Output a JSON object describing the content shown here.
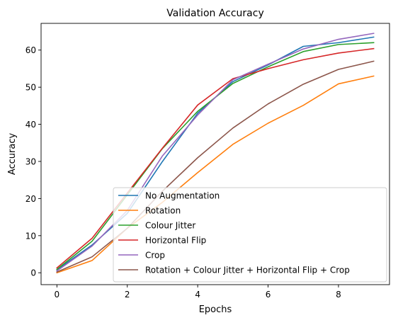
{
  "chart_data": {
    "type": "line",
    "title": "Validation Accuracy",
    "xlabel": "Epochs",
    "ylabel": "Accuracy",
    "xlim": [
      -0.45,
      9.45
    ],
    "ylim": [
      -3.2,
      67.2
    ],
    "xticks": [
      0,
      2,
      4,
      6,
      8
    ],
    "yticks": [
      0,
      10,
      20,
      30,
      40,
      50,
      60
    ],
    "grid": false,
    "legend_position": "lower-right",
    "x": [
      0,
      1,
      2,
      3,
      4,
      5,
      6,
      7,
      8,
      9
    ],
    "series": [
      {
        "name": "No Augmentation",
        "color": "#1f77b4",
        "values": [
          0.8,
          7.5,
          16.0,
          30.0,
          43.0,
          51.5,
          56.0,
          61.0,
          62.0,
          63.5
        ]
      },
      {
        "name": "Rotation",
        "color": "#ff7f0e",
        "values": [
          0.0,
          3.3,
          12.0,
          19.0,
          27.0,
          34.6,
          40.3,
          45.1,
          50.9,
          53.0
        ]
      },
      {
        "name": "Colour Jitter",
        "color": "#2ca02c",
        "values": [
          0.9,
          8.5,
          21.0,
          33.5,
          43.5,
          51.0,
          55.5,
          59.6,
          61.5,
          62.0
        ]
      },
      {
        "name": "Horizontal Flip",
        "color": "#d62728",
        "values": [
          1.3,
          9.3,
          21.5,
          33.6,
          45.2,
          52.3,
          55.0,
          57.4,
          59.2,
          60.4
        ]
      },
      {
        "name": "Crop",
        "color": "#9467bd",
        "values": [
          0.5,
          7.2,
          16.8,
          31.5,
          42.5,
          52.0,
          56.2,
          60.3,
          62.9,
          64.5
        ]
      },
      {
        "name": "Rotation + Colour Jitter + Horizontal Flip + Crop",
        "color": "#8c564b",
        "values": [
          0.2,
          4.3,
          12.0,
          22.0,
          31.0,
          39.0,
          45.5,
          50.8,
          54.8,
          57.0
        ]
      }
    ]
  }
}
